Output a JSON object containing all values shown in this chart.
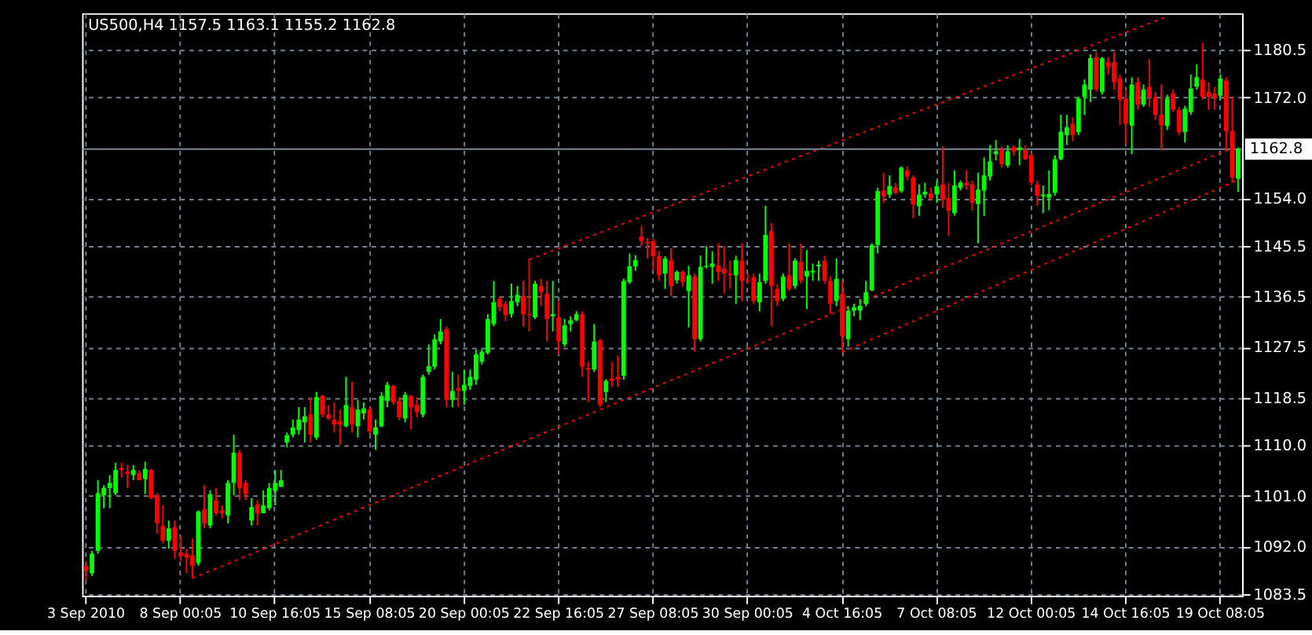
{
  "chart_data": {
    "type": "candlestick",
    "title": "US500,H4  1157.5 1163.1 1155.2 1162.8",
    "categories": [
      "3 Sep 2010",
      null,
      null,
      null,
      null,
      null,
      null,
      null,
      null,
      null,
      null,
      null,
      null,
      null,
      null,
      null,
      "8 Sep 00:05",
      null,
      null,
      null,
      null,
      null,
      null,
      null,
      null,
      null,
      null,
      null,
      null,
      null,
      null,
      null,
      "10 Sep 16:05",
      null,
      null,
      null,
      null,
      null,
      null,
      null,
      null,
      null,
      null,
      null,
      null,
      null,
      null,
      null,
      "15 Sep 08:05",
      null,
      null,
      null,
      null,
      null,
      null,
      null,
      null,
      null,
      null,
      null,
      null,
      null,
      null,
      null,
      "20 Sep 00:05",
      null,
      null,
      null,
      null,
      null,
      null,
      null,
      null,
      null,
      null,
      null,
      null,
      null,
      null,
      null,
      "22 Sep 16:05",
      null,
      null,
      null,
      null,
      null,
      null,
      null,
      null,
      null,
      null,
      null,
      null,
      null,
      null,
      null,
      "27 Sep 08:05",
      null,
      null,
      null,
      null,
      null,
      null,
      null,
      null,
      null,
      null,
      null,
      null,
      null,
      null,
      null,
      "30 Sep 00:05",
      null,
      null,
      null,
      null,
      null,
      null,
      null,
      null,
      null,
      null,
      null,
      null,
      null,
      null,
      null,
      "4 Oct 16:05",
      null,
      null,
      null,
      null,
      null,
      null,
      null,
      null,
      null,
      null,
      null,
      null,
      null,
      null,
      null,
      "7 Oct 08:05",
      null,
      null,
      null,
      null,
      null,
      null,
      null,
      null,
      null,
      null,
      null,
      null,
      null,
      null,
      null,
      "12 Oct 00:05",
      null,
      null,
      null,
      null,
      null,
      null,
      null,
      null,
      null,
      null,
      null,
      null,
      null,
      null,
      null,
      "14 Oct 16:05",
      null,
      null,
      null,
      null,
      null,
      null,
      null,
      null,
      null,
      null,
      null,
      null,
      null,
      null,
      null,
      "19 Oct 08:05",
      null,
      null,
      null
    ],
    "ohlc": [
      [
        1088.5,
        1089.4,
        1085.8,
        1087.6
      ],
      [
        1087.2,
        1091.2,
        1086.7,
        1090.7
      ],
      [
        1091.2,
        1103.8,
        1090.7,
        1101.5
      ],
      [
        1101.1,
        1102.9,
        1098.8,
        1102.4
      ],
      [
        1102.4,
        1104.7,
        1098.8,
        1103.3
      ],
      [
        1101.5,
        1106.9,
        1101.1,
        1105.6
      ],
      [
        1106.0,
        1106.9,
        1104.2,
        1105.6
      ],
      [
        1105.3,
        1106.5,
        1102.4,
        1104.9
      ],
      [
        1104.7,
        1106.5,
        1103.8,
        1105.6
      ],
      [
        1105.1,
        1105.6,
        1103.8,
        1103.8
      ],
      [
        1104.0,
        1107.1,
        1101.3,
        1105.8
      ],
      [
        1105.6,
        1105.8,
        1100.4,
        1100.6
      ],
      [
        1101.1,
        1101.5,
        1094.3,
        1096.1
      ],
      [
        1095.7,
        1099.3,
        1092.5,
        1093.0
      ],
      [
        1093.0,
        1096.6,
        1091.6,
        1095.2
      ],
      [
        1095.4,
        1096.6,
        1089.8,
        1091.2
      ],
      [
        1090.9,
        1093.9,
        1089.4,
        1090.3
      ],
      [
        1090.7,
        1091.6,
        1087.2,
        1090.0
      ],
      [
        1090.4,
        1093.4,
        1086.3,
        1088.5
      ],
      [
        1089.0,
        1098.4,
        1088.5,
        1098.2
      ],
      [
        1098.6,
        1102.9,
        1095.2,
        1096.1
      ],
      [
        1095.7,
        1102.0,
        1095.2,
        1101.3
      ],
      [
        1100.2,
        1102.4,
        1097.5,
        1097.9
      ],
      [
        1098.4,
        1099.3,
        1097.0,
        1097.9
      ],
      [
        1097.5,
        1103.8,
        1096.1,
        1103.3
      ],
      [
        1103.3,
        1111.9,
        1101.1,
        1108.7
      ],
      [
        1108.7,
        1109.2,
        1100.2,
        1102.4
      ],
      [
        1103.3,
        1103.8,
        1100.2,
        1101.3
      ],
      [
        1096.6,
        1100.6,
        1095.7,
        1099.0
      ],
      [
        1099.5,
        1100.2,
        1095.7,
        1097.9
      ],
      [
        1097.9,
        1102.0,
        1097.9,
        1099.3
      ],
      [
        1098.8,
        1103.3,
        1098.4,
        1102.4
      ],
      [
        1101.9,
        1105.6,
        1099.3,
        1103.3
      ],
      [
        1102.6,
        1105.6,
        1102.6,
        1103.8
      ],
      [
        1110.5,
        1112.3,
        1109.6,
        1111.8
      ],
      [
        1111.9,
        1114.6,
        1111.4,
        1113.2
      ],
      [
        1112.7,
        1116.8,
        1111.9,
        1114.6
      ],
      [
        1114.1,
        1116.8,
        1110.5,
        1115.2
      ],
      [
        1115.5,
        1118.6,
        1110.5,
        1111.9
      ],
      [
        1111.4,
        1119.5,
        1111.0,
        1118.6
      ],
      [
        1118.8,
        1119.0,
        1115.0,
        1115.5
      ],
      [
        1115.5,
        1117.2,
        1114.5,
        1114.8
      ],
      [
        1114.6,
        1117.7,
        1112.3,
        1113.7
      ],
      [
        1114.3,
        1116.4,
        1110.1,
        1113.7
      ],
      [
        1113.4,
        1122.2,
        1113.2,
        1117.2
      ],
      [
        1116.8,
        1121.3,
        1112.3,
        1113.7
      ],
      [
        1113.4,
        1118.1,
        1111.4,
        1116.4
      ],
      [
        1115.7,
        1117.7,
        1114.6,
        1116.6
      ],
      [
        1116.4,
        1116.8,
        1111.9,
        1112.5
      ],
      [
        1111.9,
        1114.6,
        1109.2,
        1113.2
      ],
      [
        1113.4,
        1119.5,
        1113.2,
        1118.8
      ],
      [
        1117.9,
        1121.3,
        1116.8,
        1120.8
      ],
      [
        1120.6,
        1120.8,
        1117.2,
        1117.7
      ],
      [
        1117.9,
        1118.6,
        1114.5,
        1115.0
      ],
      [
        1114.8,
        1119.5,
        1114.1,
        1119.0
      ],
      [
        1118.8,
        1119.0,
        1112.8,
        1116.8
      ],
      [
        1117.2,
        1118.6,
        1115.0,
        1115.9
      ],
      [
        1115.5,
        1122.6,
        1115.0,
        1122.2
      ],
      [
        1123.1,
        1128.0,
        1122.6,
        1124.1
      ],
      [
        1124.0,
        1129.8,
        1123.5,
        1128.9
      ],
      [
        1128.5,
        1132.5,
        1128.0,
        1130.3
      ],
      [
        1130.7,
        1131.2,
        1116.8,
        1118.1
      ],
      [
        1118.1,
        1123.1,
        1116.8,
        1119.7
      ],
      [
        1120.2,
        1122.6,
        1116.8,
        1119.7
      ],
      [
        1119.7,
        1123.5,
        1117.2,
        1120.8
      ],
      [
        1120.6,
        1123.5,
        1119.9,
        1122.2
      ],
      [
        1121.7,
        1127.1,
        1120.8,
        1126.2
      ],
      [
        1124.9,
        1127.1,
        1124.4,
        1126.7
      ],
      [
        1126.5,
        1133.4,
        1126.2,
        1132.5
      ],
      [
        1131.6,
        1139.3,
        1131.2,
        1135.5
      ],
      [
        1136.1,
        1136.6,
        1133.9,
        1134.6
      ],
      [
        1135.2,
        1135.7,
        1132.1,
        1133.2
      ],
      [
        1133.4,
        1138.8,
        1132.8,
        1135.7
      ],
      [
        1135.5,
        1138.4,
        1134.8,
        1136.8
      ],
      [
        1136.6,
        1139.3,
        1131.2,
        1133.4
      ],
      [
        1133.4,
        1143.3,
        1130.3,
        1133.2
      ],
      [
        1132.8,
        1139.3,
        1132.5,
        1138.8
      ],
      [
        1138.4,
        1139.7,
        1134.8,
        1137.3
      ],
      [
        1137.0,
        1139.3,
        1128.5,
        1132.5
      ],
      [
        1133.0,
        1139.3,
        1130.3,
        1133.4
      ],
      [
        1132.8,
        1135.7,
        1126.2,
        1128.5
      ],
      [
        1128.0,
        1132.5,
        1127.6,
        1131.4
      ],
      [
        1131.6,
        1133.0,
        1130.3,
        1132.3
      ],
      [
        1132.3,
        1133.9,
        1132.1,
        1133.4
      ],
      [
        1133.4,
        1133.9,
        1122.2,
        1124.0
      ],
      [
        1123.8,
        1124.9,
        1117.7,
        1123.5
      ],
      [
        1123.5,
        1131.6,
        1123.1,
        1128.5
      ],
      [
        1128.7,
        1129.0,
        1116.8,
        1117.2
      ],
      [
        1119.5,
        1121.8,
        1117.7,
        1121.5
      ],
      [
        1121.9,
        1124.9,
        1120.4,
        1121.5
      ],
      [
        1122.2,
        1126.0,
        1120.4,
        1121.7
      ],
      [
        1122.4,
        1139.7,
        1121.7,
        1139.3
      ],
      [
        1139.1,
        1144.2,
        1138.8,
        1141.9
      ],
      [
        1141.9,
        1143.9,
        1141.1,
        1143.0
      ],
      [
        1147.2,
        1149.1,
        1145.5,
        1146.4
      ],
      [
        1146.3,
        1146.9,
        1143.3,
        1146.0
      ],
      [
        1146.4,
        1146.9,
        1141.1,
        1143.7
      ],
      [
        1143.7,
        1144.6,
        1139.3,
        1140.3
      ],
      [
        1140.6,
        1143.7,
        1137.9,
        1143.3
      ],
      [
        1143.0,
        1145.1,
        1136.6,
        1138.4
      ],
      [
        1139.4,
        1141.2,
        1138.8,
        1140.9
      ],
      [
        1140.9,
        1141.2,
        1138.2,
        1139.1
      ],
      [
        1137.5,
        1142.0,
        1131.0,
        1140.3
      ],
      [
        1140.1,
        1140.6,
        1126.7,
        1128.9
      ],
      [
        1128.9,
        1143.8,
        1128.5,
        1141.8
      ],
      [
        1141.8,
        1145.5,
        1141.5,
        1142.0
      ],
      [
        1141.8,
        1144.6,
        1138.8,
        1142.4
      ],
      [
        1142.1,
        1146.0,
        1139.3,
        1140.9
      ],
      [
        1141.5,
        1145.5,
        1137.0,
        1140.6
      ],
      [
        1140.6,
        1142.9,
        1137.9,
        1140.3
      ],
      [
        1140.3,
        1143.8,
        1135.2,
        1143.0
      ],
      [
        1142.9,
        1146.0,
        1135.7,
        1139.3
      ],
      [
        1139.4,
        1140.6,
        1138.8,
        1139.3
      ],
      [
        1140.0,
        1140.6,
        1135.2,
        1135.7
      ],
      [
        1135.5,
        1140.6,
        1133.9,
        1139.1
      ],
      [
        1139.3,
        1152.7,
        1138.8,
        1147.5
      ],
      [
        1148.2,
        1149.6,
        1131.2,
        1138.4
      ],
      [
        1137.9,
        1138.8,
        1134.8,
        1135.7
      ],
      [
        1136.1,
        1140.6,
        1135.7,
        1140.1
      ],
      [
        1140.3,
        1146.0,
        1137.5,
        1137.9
      ],
      [
        1138.4,
        1143.3,
        1137.9,
        1142.9
      ],
      [
        1142.7,
        1146.0,
        1138.8,
        1139.3
      ],
      [
        1140.1,
        1144.8,
        1134.3,
        1141.1
      ],
      [
        1140.8,
        1142.4,
        1139.3,
        1141.1
      ],
      [
        1141.9,
        1142.9,
        1139.3,
        1142.2
      ],
      [
        1142.9,
        1143.8,
        1138.8,
        1139.3
      ],
      [
        1139.3,
        1140.1,
        1133.4,
        1135.2
      ],
      [
        1135.7,
        1143.3,
        1134.8,
        1139.7
      ],
      [
        1137.0,
        1139.3,
        1126.7,
        1129.4
      ],
      [
        1128.9,
        1134.8,
        1127.6,
        1134.0
      ],
      [
        1134.0,
        1135.2,
        1133.0,
        1134.6
      ],
      [
        1134.0,
        1136.1,
        1132.3,
        1134.9
      ],
      [
        1135.2,
        1139.3,
        1134.8,
        1137.3
      ],
      [
        1137.6,
        1146.0,
        1137.5,
        1145.7
      ],
      [
        1145.7,
        1155.9,
        1144.2,
        1155.3
      ],
      [
        1155.4,
        1158.6,
        1153.2,
        1154.4
      ],
      [
        1154.7,
        1158.1,
        1154.1,
        1156.2
      ],
      [
        1156.0,
        1156.8,
        1154.7,
        1155.0
      ],
      [
        1155.3,
        1159.7,
        1155.0,
        1159.5
      ],
      [
        1159.0,
        1159.7,
        1157.2,
        1157.9
      ],
      [
        1157.7,
        1158.1,
        1150.5,
        1152.9
      ],
      [
        1152.6,
        1156.5,
        1150.9,
        1154.7
      ],
      [
        1154.7,
        1156.8,
        1154.1,
        1155.2
      ],
      [
        1154.9,
        1155.9,
        1153.6,
        1154.0
      ],
      [
        1154.7,
        1157.2,
        1153.2,
        1156.2
      ],
      [
        1156.5,
        1163.3,
        1152.3,
        1153.8
      ],
      [
        1154.1,
        1156.8,
        1147.3,
        1151.8
      ],
      [
        1151.4,
        1159.0,
        1150.9,
        1156.3
      ],
      [
        1155.9,
        1157.2,
        1155.4,
        1156.8
      ],
      [
        1156.8,
        1159.0,
        1155.6,
        1156.3
      ],
      [
        1156.5,
        1157.2,
        1151.8,
        1153.2
      ],
      [
        1153.0,
        1158.6,
        1146.0,
        1155.6
      ],
      [
        1155.4,
        1161.3,
        1150.9,
        1158.1
      ],
      [
        1157.9,
        1163.5,
        1157.2,
        1160.6
      ],
      [
        1161.9,
        1164.4,
        1160.8,
        1162.4
      ],
      [
        1162.8,
        1163.3,
        1159.5,
        1160.1
      ],
      [
        1159.9,
        1163.5,
        1159.5,
        1162.4
      ],
      [
        1163.1,
        1163.5,
        1161.7,
        1162.4
      ],
      [
        1162.6,
        1164.6,
        1159.9,
        1163.1
      ],
      [
        1162.6,
        1163.5,
        1160.8,
        1161.0
      ],
      [
        1161.7,
        1162.2,
        1156.3,
        1156.8
      ],
      [
        1156.5,
        1157.2,
        1152.7,
        1154.5
      ],
      [
        1154.4,
        1156.3,
        1151.4,
        1154.7
      ],
      [
        1154.1,
        1159.0,
        1151.9,
        1154.8
      ],
      [
        1155.0,
        1161.7,
        1154.5,
        1161.0
      ],
      [
        1161.0,
        1168.9,
        1160.8,
        1165.9
      ],
      [
        1165.3,
        1168.9,
        1163.5,
        1166.7
      ],
      [
        1167.3,
        1168.5,
        1164.2,
        1165.3
      ],
      [
        1165.8,
        1172.1,
        1165.3,
        1171.8
      ],
      [
        1172.1,
        1175.2,
        1168.9,
        1174.3
      ],
      [
        1173.4,
        1179.7,
        1171.2,
        1179.0
      ],
      [
        1179.2,
        1180.1,
        1173.0,
        1173.4
      ],
      [
        1173.0,
        1179.2,
        1172.5,
        1179.0
      ],
      [
        1178.3,
        1179.2,
        1176.1,
        1177.4
      ],
      [
        1178.3,
        1180.1,
        1173.4,
        1174.7
      ],
      [
        1175.4,
        1176.1,
        1167.1,
        1171.6
      ],
      [
        1171.8,
        1173.4,
        1163.7,
        1167.3
      ],
      [
        1167.0,
        1175.6,
        1161.9,
        1174.3
      ],
      [
        1174.7,
        1175.6,
        1169.8,
        1170.7
      ],
      [
        1170.7,
        1174.3,
        1170.3,
        1173.4
      ],
      [
        1173.9,
        1178.8,
        1170.3,
        1172.1
      ],
      [
        1172.1,
        1173.0,
        1168.0,
        1168.9
      ],
      [
        1168.9,
        1174.3,
        1162.6,
        1167.1
      ],
      [
        1166.9,
        1172.5,
        1166.2,
        1171.8
      ],
      [
        1172.7,
        1173.4,
        1169.4,
        1169.8
      ],
      [
        1169.8,
        1170.3,
        1165.3,
        1165.8
      ],
      [
        1165.8,
        1170.5,
        1164.0,
        1170.0
      ],
      [
        1169.4,
        1176.1,
        1168.9,
        1173.6
      ],
      [
        1173.9,
        1177.9,
        1173.4,
        1175.6
      ],
      [
        1175.2,
        1181.7,
        1171.6,
        1172.1
      ],
      [
        1173.0,
        1174.7,
        1169.8,
        1172.1
      ],
      [
        1172.7,
        1173.9,
        1169.8,
        1171.8
      ],
      [
        1172.3,
        1176.1,
        1171.6,
        1175.4
      ],
      [
        1175.0,
        1175.6,
        1162.6,
        1166.0
      ],
      [
        1166.0,
        1172.1,
        1156.8,
        1157.7
      ],
      [
        1157.5,
        1163.1,
        1155.2,
        1162.8
      ]
    ],
    "colors": [
      "#ff0000",
      "#00ff00",
      "#00ff00",
      "#00ff00",
      "#00ff00",
      "#00ff00",
      "#ff0000",
      "#ff0000",
      "#00ff00",
      "#ff0000",
      "#00ff00",
      "#ff0000",
      "#ff0000",
      "#ff0000",
      "#00ff00",
      "#ff0000",
      "#ff0000",
      "#ff0000",
      "#ff0000",
      "#00ff00",
      "#ff0000",
      "#00ff00",
      "#ff0000",
      "#ff0000",
      "#00ff00",
      "#00ff00",
      "#ff0000",
      "#ff0000",
      "#00ff00",
      "#ff0000",
      "#00ff00",
      "#00ff00",
      "#00ff00",
      "#00ff00",
      "#00ff00",
      "#00ff00",
      "#00ff00",
      "#00ff00",
      "#ff0000",
      "#00ff00",
      "#ff0000",
      "#ff0000",
      "#ff0000",
      "#ff0000",
      "#00ff00",
      "#ff0000",
      "#00ff00",
      "#00ff00",
      "#ff0000",
      "#00ff00",
      "#00ff00",
      "#00ff00",
      "#ff0000",
      "#ff0000",
      "#00ff00",
      "#ff0000",
      "#ff0000",
      "#00ff00",
      "#00ff00",
      "#00ff00",
      "#00ff00",
      "#ff0000",
      "#00ff00",
      "#ff0000",
      "#00ff00",
      "#00ff00",
      "#00ff00",
      "#00ff00",
      "#00ff00",
      "#00ff00",
      "#ff0000",
      "#ff0000",
      "#00ff00",
      "#00ff00",
      "#ff0000",
      "#ff0000",
      "#00ff00",
      "#ff0000",
      "#ff0000",
      "#00ff00",
      "#ff0000",
      "#00ff00",
      "#00ff00",
      "#00ff00",
      "#ff0000",
      "#ff0000",
      "#00ff00",
      "#ff0000",
      "#00ff00",
      "#ff0000",
      "#ff0000",
      "#00ff00",
      "#00ff00",
      "#00ff00",
      "#ff0000",
      "#ff0000",
      "#ff0000",
      "#ff0000",
      "#00ff00",
      "#ff0000",
      "#00ff00",
      "#ff0000",
      "#00ff00",
      "#ff0000",
      "#00ff00",
      "#00ff00",
      "#00ff00",
      "#ff0000",
      "#ff0000",
      "#ff0000",
      "#00ff00",
      "#ff0000",
      "#ff0000",
      "#ff0000",
      "#00ff00",
      "#00ff00",
      "#ff0000",
      "#ff0000",
      "#00ff00",
      "#ff0000",
      "#00ff00",
      "#ff0000",
      "#00ff00",
      "#00ff00",
      "#00ff00",
      "#ff0000",
      "#ff0000",
      "#00ff00",
      "#ff0000",
      "#00ff00",
      "#00ff00",
      "#00ff00",
      "#00ff00",
      "#00ff00",
      "#00ff00",
      "#ff0000",
      "#00ff00",
      "#ff0000",
      "#00ff00",
      "#ff0000",
      "#ff0000",
      "#00ff00",
      "#00ff00",
      "#ff0000",
      "#00ff00",
      "#ff0000",
      "#ff0000",
      "#00ff00",
      "#00ff00",
      "#ff0000",
      "#ff0000",
      "#00ff00",
      "#00ff00",
      "#00ff00",
      "#00ff00",
      "#ff0000",
      "#00ff00",
      "#ff0000",
      "#00ff00",
      "#ff0000",
      "#ff0000",
      "#ff0000",
      "#00ff00",
      "#00ff00",
      "#00ff00",
      "#00ff00",
      "#00ff00",
      "#ff0000",
      "#00ff00",
      "#00ff00",
      "#00ff00",
      "#ff0000",
      "#00ff00",
      "#ff0000",
      "#ff0000",
      "#ff0000",
      "#ff0000",
      "#00ff00",
      "#ff0000",
      "#00ff00",
      "#ff0000",
      "#ff0000",
      "#ff0000",
      "#00ff00",
      "#ff0000",
      "#ff0000",
      "#00ff00",
      "#00ff00",
      "#00ff00",
      "#ff0000",
      "#ff0000",
      "#ff0000",
      "#00ff00",
      "#ff0000",
      "#ff0000",
      "#00ff00"
    ],
    "series": [
      {
        "type": "line",
        "color": "#ff0000",
        "line_style": "dotted",
        "values": [
          null,
          null,
          null,
          null,
          null,
          null,
          null,
          null,
          null,
          null,
          null,
          null,
          null,
          null,
          null,
          null,
          null,
          null,
          1086.3,
          null,
          null,
          null,
          null,
          null,
          null,
          null,
          null,
          null,
          null,
          null,
          null,
          null,
          null,
          null,
          null,
          null,
          null,
          null,
          null,
          null,
          null,
          null,
          null,
          null,
          null,
          null,
          null,
          null,
          null,
          null,
          null,
          null,
          null,
          null,
          null,
          null,
          null,
          null,
          null,
          null,
          null,
          null,
          null,
          null,
          null,
          null,
          null,
          null,
          null,
          null,
          null,
          null,
          null,
          null,
          null,
          null,
          null,
          null,
          null,
          null,
          null,
          null,
          null,
          null,
          null,
          null,
          null,
          null,
          null,
          null,
          null,
          null,
          null,
          null,
          null,
          null,
          null,
          null,
          null,
          null,
          null,
          null,
          null,
          null,
          null,
          null,
          null,
          null,
          null,
          null,
          null,
          null,
          null,
          null,
          null,
          null,
          null,
          null,
          null,
          null,
          null,
          null,
          null,
          null,
          null,
          null,
          null,
          null,
          null,
          null,
          null,
          null,
          null,
          null,
          null,
          null,
          null,
          null,
          null,
          null,
          null,
          null,
          null,
          null,
          null,
          null,
          null,
          null,
          null,
          null,
          null,
          null,
          null,
          null,
          null,
          null,
          null,
          null,
          null,
          null,
          null,
          null,
          null,
          null,
          null,
          null,
          null,
          null,
          null,
          null,
          null,
          null,
          null,
          null,
          null,
          null,
          null,
          null,
          null,
          null,
          null,
          null,
          null,
          null,
          null,
          null,
          null,
          null,
          null,
          null,
          null,
          null,
          null,
          null,
          null,
          1163.4
        ]
      },
      {
        "type": "line",
        "color": "#ff0000",
        "line_style": "dotted",
        "values": [
          null,
          null,
          null,
          null,
          null,
          null,
          null,
          null,
          null,
          null,
          null,
          null,
          null,
          null,
          null,
          null,
          null,
          null,
          null,
          null,
          null,
          null,
          null,
          null,
          null,
          null,
          null,
          null,
          null,
          null,
          null,
          null,
          null,
          null,
          null,
          null,
          null,
          null,
          null,
          null,
          null,
          null,
          null,
          null,
          null,
          null,
          null,
          null,
          null,
          null,
          null,
          null,
          null,
          null,
          null,
          null,
          null,
          null,
          null,
          null,
          null,
          null,
          null,
          null,
          null,
          null,
          null,
          null,
          null,
          null,
          null,
          null,
          null,
          null,
          null,
          1143.1,
          null,
          null,
          null,
          null,
          null,
          null,
          null,
          null,
          null,
          null,
          null,
          null,
          null,
          null,
          null,
          null,
          null,
          null,
          null,
          null,
          null,
          null,
          null,
          null,
          null,
          null,
          null,
          null,
          null,
          null,
          null,
          null,
          null,
          null,
          null,
          null,
          null,
          null,
          null,
          null,
          null,
          null,
          null,
          null,
          null,
          null,
          null,
          null,
          null,
          null,
          null,
          null,
          null,
          null,
          null,
          null,
          null,
          null,
          null,
          null,
          null,
          null,
          null,
          null,
          null,
          null,
          null,
          null,
          null,
          null,
          null,
          null,
          null,
          null,
          null,
          null,
          null,
          null,
          null,
          null,
          null,
          null,
          null,
          null,
          null,
          null,
          null,
          null,
          null,
          null,
          null,
          null,
          null,
          null,
          null,
          null,
          null,
          null,
          null,
          null,
          null,
          null,
          null,
          null,
          null,
          null,
          null,
          1186.4,
          null,
          null,
          null,
          null,
          null,
          null,
          null,
          null,
          null,
          null,
          null,
          null
        ]
      },
      {
        "type": "line",
        "color": "#ff0000",
        "line_style": "dotted",
        "values": [
          null,
          null,
          null,
          null,
          null,
          null,
          null,
          null,
          null,
          null,
          null,
          null,
          null,
          null,
          null,
          null,
          null,
          null,
          null,
          null,
          null,
          null,
          null,
          null,
          null,
          null,
          null,
          null,
          null,
          null,
          null,
          null,
          null,
          null,
          null,
          null,
          null,
          null,
          null,
          null,
          null,
          null,
          null,
          null,
          null,
          null,
          null,
          null,
          null,
          null,
          null,
          null,
          null,
          null,
          null,
          null,
          null,
          null,
          null,
          null,
          null,
          null,
          null,
          null,
          null,
          null,
          null,
          null,
          null,
          null,
          null,
          null,
          null,
          null,
          null,
          null,
          null,
          null,
          null,
          null,
          null,
          null,
          null,
          null,
          null,
          null,
          null,
          null,
          null,
          null,
          null,
          null,
          null,
          null,
          null,
          null,
          null,
          null,
          null,
          null,
          null,
          null,
          null,
          null,
          null,
          null,
          null,
          null,
          null,
          null,
          null,
          null,
          null,
          null,
          null,
          null,
          null,
          null,
          null,
          null,
          null,
          null,
          null,
          null,
          null,
          null,
          null,
          null,
          1126.6,
          null,
          null,
          null,
          null,
          null,
          null,
          null,
          null,
          null,
          null,
          null,
          null,
          null,
          null,
          null,
          null,
          null,
          null,
          null,
          null,
          null,
          null,
          null,
          null,
          null,
          null,
          null,
          null,
          null,
          null,
          null,
          null,
          null,
          null,
          null,
          null,
          null,
          null,
          null,
          null,
          null,
          null,
          null,
          null,
          null,
          null,
          null,
          null,
          null,
          null,
          null,
          null,
          null,
          null,
          null,
          null,
          null,
          null,
          null,
          null,
          null,
          null,
          null,
          null,
          null,
          null,
          1157.3
        ]
      }
    ],
    "ylim": [
      1083.2,
      1187.0
    ],
    "yticks": [
      1083.5,
      {
        "value": 1092,
        "label": "1092.0"
      },
      {
        "value": 1101,
        "label": "1101.0"
      },
      {
        "value": 1110,
        "label": "1110.0"
      },
      1118.5,
      1127.5,
      1136.5,
      1145.5,
      {
        "value": 1154,
        "label": "1154.0"
      },
      {
        "value": 1172,
        "label": "1172.0"
      },
      1180.5
    ],
    "ref_lines": [
      {
        "axis": "y",
        "value": 1162.8,
        "label": "1162.8",
        "color": "#778899"
      }
    ],
    "grid": true
  }
}
